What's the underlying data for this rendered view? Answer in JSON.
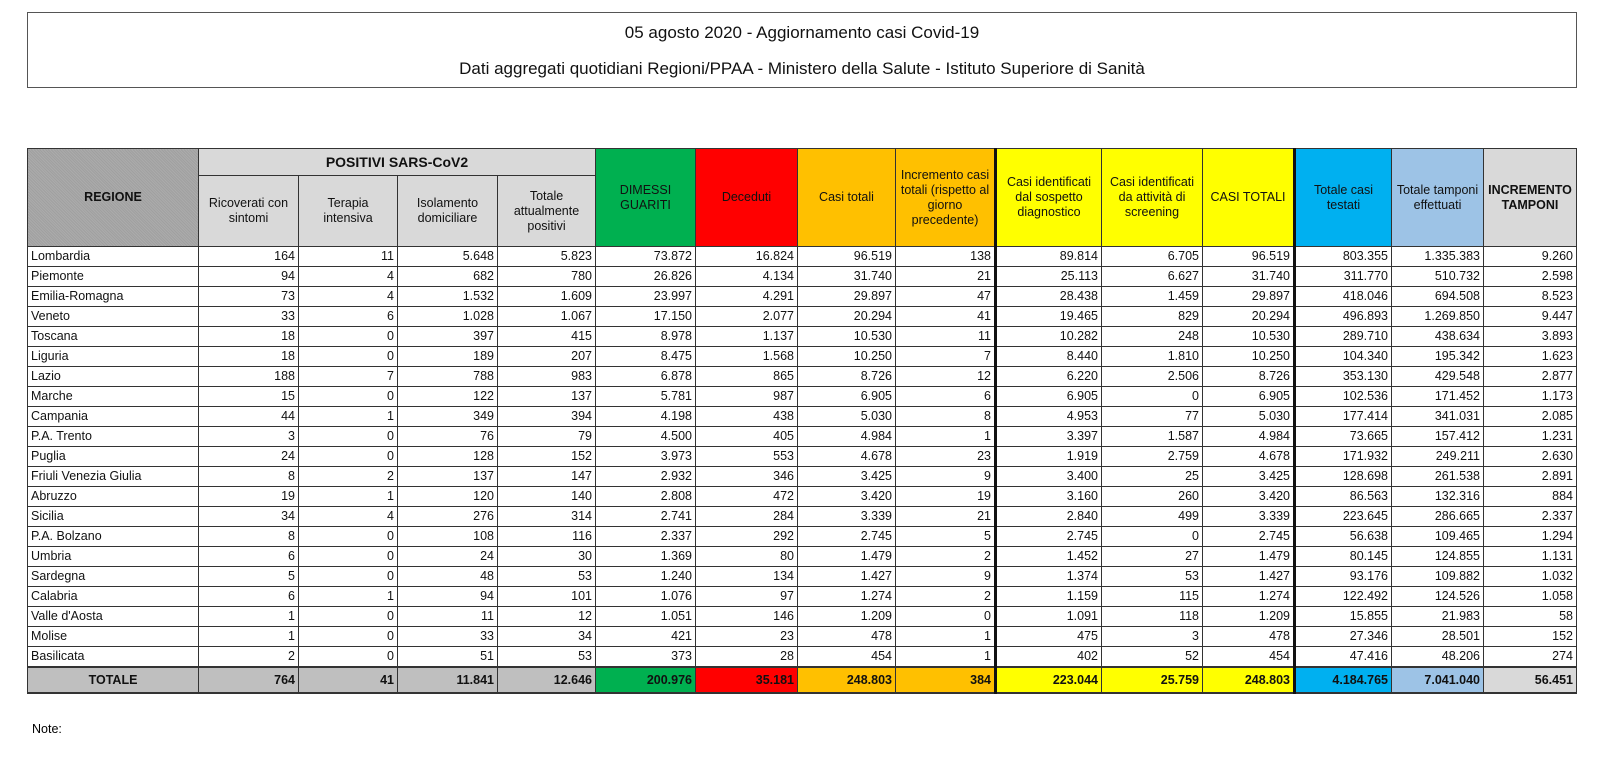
{
  "title": {
    "line1": "05 agosto 2020 - Aggiornamento casi Covid-19",
    "line2": "Dati aggregati quotidiani Regioni/PPAA - Ministero della Salute - Istituto Superiore di Sanità"
  },
  "table": {
    "group_header": "POSITIVI SARS-CoV2",
    "columns": [
      {
        "label": "REGIONE",
        "color": "#a6a6a6"
      },
      {
        "label": "Ricoverati con sintomi",
        "color": "#d9d9d9"
      },
      {
        "label": "Terapia intensiva",
        "color": "#d9d9d9"
      },
      {
        "label": "Isolamento domiciliare",
        "color": "#d9d9d9"
      },
      {
        "label": "Totale attualmente positivi",
        "color": "#d9d9d9"
      },
      {
        "label": "DIMESSI GUARITI",
        "color": "#00b050"
      },
      {
        "label": "Deceduti",
        "color": "#ff0000"
      },
      {
        "label": "Casi totali",
        "color": "#ffc000"
      },
      {
        "label": "Incremento casi totali (rispetto al giorno precedente)",
        "color": "#ffc000"
      },
      {
        "label": "Casi identificati dal sospetto diagnostico",
        "color": "#ffff00"
      },
      {
        "label": "Casi identificati da attività di screening",
        "color": "#ffff00"
      },
      {
        "label": "CASI TOTALI",
        "color": "#ffff00"
      },
      {
        "label": "Totale casi testati",
        "color": "#00b0f0"
      },
      {
        "label": "Totale tamponi effettuati",
        "color": "#9dc3e6"
      },
      {
        "label": "INCREMENTO TAMPONI",
        "color": "#d9d9d9"
      }
    ],
    "rows": [
      [
        "Lombardia",
        "164",
        "11",
        "5.648",
        "5.823",
        "73.872",
        "16.824",
        "96.519",
        "138",
        "89.814",
        "6.705",
        "96.519",
        "803.355",
        "1.335.383",
        "9.260"
      ],
      [
        "Piemonte",
        "94",
        "4",
        "682",
        "780",
        "26.826",
        "4.134",
        "31.740",
        "21",
        "25.113",
        "6.627",
        "31.740",
        "311.770",
        "510.732",
        "2.598"
      ],
      [
        "Emilia-Romagna",
        "73",
        "4",
        "1.532",
        "1.609",
        "23.997",
        "4.291",
        "29.897",
        "47",
        "28.438",
        "1.459",
        "29.897",
        "418.046",
        "694.508",
        "8.523"
      ],
      [
        "Veneto",
        "33",
        "6",
        "1.028",
        "1.067",
        "17.150",
        "2.077",
        "20.294",
        "41",
        "19.465",
        "829",
        "20.294",
        "496.893",
        "1.269.850",
        "9.447"
      ],
      [
        "Toscana",
        "18",
        "0",
        "397",
        "415",
        "8.978",
        "1.137",
        "10.530",
        "11",
        "10.282",
        "248",
        "10.530",
        "289.710",
        "438.634",
        "3.893"
      ],
      [
        "Liguria",
        "18",
        "0",
        "189",
        "207",
        "8.475",
        "1.568",
        "10.250",
        "7",
        "8.440",
        "1.810",
        "10.250",
        "104.340",
        "195.342",
        "1.623"
      ],
      [
        "Lazio",
        "188",
        "7",
        "788",
        "983",
        "6.878",
        "865",
        "8.726",
        "12",
        "6.220",
        "2.506",
        "8.726",
        "353.130",
        "429.548",
        "2.877"
      ],
      [
        "Marche",
        "15",
        "0",
        "122",
        "137",
        "5.781",
        "987",
        "6.905",
        "6",
        "6.905",
        "0",
        "6.905",
        "102.536",
        "171.452",
        "1.173"
      ],
      [
        "Campania",
        "44",
        "1",
        "349",
        "394",
        "4.198",
        "438",
        "5.030",
        "8",
        "4.953",
        "77",
        "5.030",
        "177.414",
        "341.031",
        "2.085"
      ],
      [
        "P.A. Trento",
        "3",
        "0",
        "76",
        "79",
        "4.500",
        "405",
        "4.984",
        "1",
        "3.397",
        "1.587",
        "4.984",
        "73.665",
        "157.412",
        "1.231"
      ],
      [
        "Puglia",
        "24",
        "0",
        "128",
        "152",
        "3.973",
        "553",
        "4.678",
        "23",
        "1.919",
        "2.759",
        "4.678",
        "171.932",
        "249.211",
        "2.630"
      ],
      [
        "Friuli Venezia Giulia",
        "8",
        "2",
        "137",
        "147",
        "2.932",
        "346",
        "3.425",
        "9",
        "3.400",
        "25",
        "3.425",
        "128.698",
        "261.538",
        "2.891"
      ],
      [
        "Abruzzo",
        "19",
        "1",
        "120",
        "140",
        "2.808",
        "472",
        "3.420",
        "19",
        "3.160",
        "260",
        "3.420",
        "86.563",
        "132.316",
        "884"
      ],
      [
        "Sicilia",
        "34",
        "4",
        "276",
        "314",
        "2.741",
        "284",
        "3.339",
        "21",
        "2.840",
        "499",
        "3.339",
        "223.645",
        "286.665",
        "2.337"
      ],
      [
        "P.A. Bolzano",
        "8",
        "0",
        "108",
        "116",
        "2.337",
        "292",
        "2.745",
        "5",
        "2.745",
        "0",
        "2.745",
        "56.638",
        "109.465",
        "1.294"
      ],
      [
        "Umbria",
        "6",
        "0",
        "24",
        "30",
        "1.369",
        "80",
        "1.479",
        "2",
        "1.452",
        "27",
        "1.479",
        "80.145",
        "124.855",
        "1.131"
      ],
      [
        "Sardegna",
        "5",
        "0",
        "48",
        "53",
        "1.240",
        "134",
        "1.427",
        "9",
        "1.374",
        "53",
        "1.427",
        "93.176",
        "109.882",
        "1.032"
      ],
      [
        "Calabria",
        "6",
        "1",
        "94",
        "101",
        "1.076",
        "97",
        "1.274",
        "2",
        "1.159",
        "115",
        "1.274",
        "122.492",
        "124.526",
        "1.058"
      ],
      [
        "Valle d'Aosta",
        "1",
        "0",
        "11",
        "12",
        "1.051",
        "146",
        "1.209",
        "0",
        "1.091",
        "118",
        "1.209",
        "15.855",
        "21.983",
        "58"
      ],
      [
        "Molise",
        "1",
        "0",
        "33",
        "34",
        "421",
        "23",
        "478",
        "1",
        "475",
        "3",
        "478",
        "27.346",
        "28.501",
        "152"
      ],
      [
        "Basilicata",
        "2",
        "0",
        "51",
        "53",
        "373",
        "28",
        "454",
        "1",
        "402",
        "52",
        "454",
        "47.416",
        "48.206",
        "274"
      ]
    ],
    "total": [
      "TOTALE",
      "764",
      "41",
      "11.841",
      "12.646",
      "200.976",
      "35.181",
      "248.803",
      "384",
      "223.044",
      "25.759",
      "248.803",
      "4.184.765",
      "7.041.040",
      "56.451"
    ]
  },
  "note_label": "Note:"
}
